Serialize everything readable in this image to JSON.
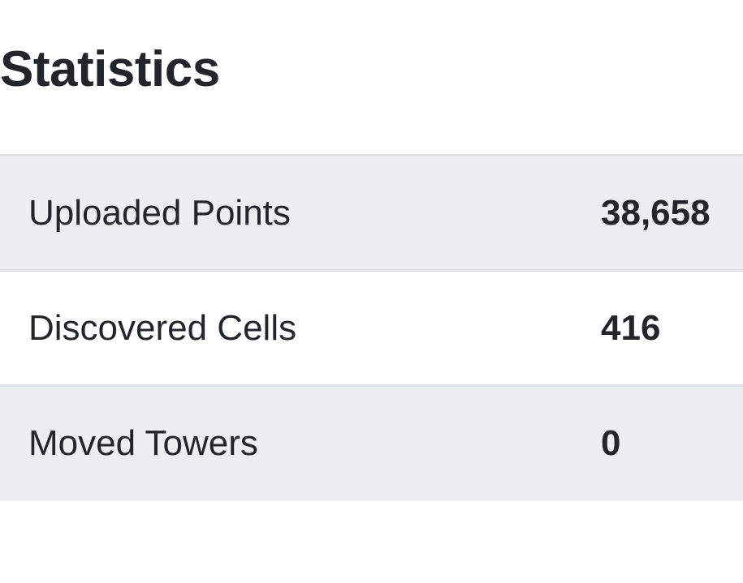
{
  "page": {
    "title": "Statistics"
  },
  "stats": [
    {
      "label": "Uploaded Points",
      "value": "38,658"
    },
    {
      "label": "Discovered Cells",
      "value": "416"
    },
    {
      "label": "Moved Towers",
      "value": "0"
    }
  ]
}
